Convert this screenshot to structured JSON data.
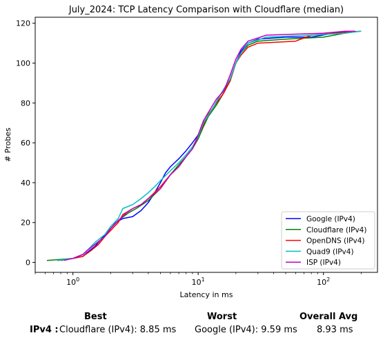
{
  "chart_data": {
    "type": "line",
    "title": "July_2024: TCP Latency Comparison with Cloudflare (median)",
    "xlabel": "Latency in ms",
    "ylabel": "# Probes",
    "xscale": "log",
    "xlim": [
      0.5,
      270
    ],
    "ylim": [
      -5,
      123
    ],
    "xticks": [
      1,
      10,
      100
    ],
    "xtick_labels": [
      "10^0",
      "10^1",
      "10^2"
    ],
    "yticks": [
      0,
      20,
      40,
      60,
      80,
      100,
      120
    ],
    "grid": false,
    "legend_position": "lower-right",
    "series": [
      {
        "name": "Google (IPv4)",
        "color": "#0000ff",
        "x": [
          0.75,
          0.9,
          1.0,
          1.2,
          1.3,
          1.5,
          1.7,
          2.0,
          2.2,
          2.5,
          3.0,
          3.5,
          4.0,
          4.5,
          5.0,
          5.5,
          6.0,
          7.0,
          8.0,
          9.0,
          10.0,
          11.0,
          13.0,
          15.0,
          18.0,
          20.0,
          22.0,
          25.0,
          30.0,
          50.0,
          80.0,
          120.0,
          180.0
        ],
        "y": [
          1,
          1.5,
          2,
          3,
          5,
          8,
          12,
          17,
          20,
          22,
          23,
          26,
          30,
          35,
          40,
          45,
          48,
          52,
          56,
          60,
          64,
          70,
          77,
          84,
          92,
          100,
          106,
          110,
          112,
          113,
          113,
          115,
          116
        ]
      },
      {
        "name": "Cloudflare (IPv4)",
        "color": "#008000",
        "x": [
          0.62,
          0.8,
          1.0,
          1.2,
          1.3,
          1.5,
          1.8,
          2.0,
          2.3,
          2.8,
          3.2,
          4.0,
          5.0,
          6.0,
          7.0,
          8.0,
          9.0,
          10.0,
          11.0,
          12.0,
          14.0,
          16.0,
          18.0,
          20.0,
          22.0,
          25.0,
          30.0,
          50.0,
          100.0,
          180.0
        ],
        "y": [
          1,
          1.5,
          2,
          4,
          6,
          9,
          13,
          17,
          21,
          25,
          27,
          31,
          37,
          44,
          49,
          53,
          57,
          62,
          68,
          73,
          79,
          85,
          92,
          100,
          105,
          109,
          111,
          112,
          113,
          116
        ]
      },
      {
        "name": "OpenDNS (IPv4)",
        "color": "#ff0000",
        "x": [
          0.8,
          1.0,
          1.2,
          1.4,
          1.6,
          1.8,
          2.0,
          2.3,
          2.5,
          3.0,
          3.5,
          4.0,
          5.0,
          6.0,
          7.0,
          8.0,
          9.0,
          10.0,
          11.0,
          12.0,
          14.0,
          16.0,
          18.0,
          20.0,
          22.0,
          25.0,
          30.0,
          60.0,
          80.0,
          200.0
        ],
        "y": [
          1,
          2,
          3,
          6,
          9,
          13,
          16,
          20,
          24,
          27,
          29,
          32,
          38,
          44,
          48,
          53,
          57,
          63,
          69,
          74,
          80,
          85,
          91,
          100,
          104,
          108,
          110,
          111,
          114,
          116
        ]
      },
      {
        "name": "Quad9 (IPv4)",
        "color": "#00bfbf",
        "x": [
          0.75,
          1.0,
          1.2,
          1.3,
          1.5,
          1.8,
          2.0,
          2.3,
          2.5,
          3.0,
          3.5,
          4.0,
          4.5,
          5.0,
          6.0,
          7.0,
          8.0,
          9.0,
          10.0,
          11.0,
          13.0,
          15.0,
          18.0,
          20.0,
          22.0,
          25.0,
          35.0,
          80.0,
          150.0,
          200.0
        ],
        "y": [
          1,
          2,
          4,
          6,
          10,
          14,
          18,
          22,
          27,
          29,
          32,
          35,
          38,
          41,
          46,
          50,
          54,
          58,
          63,
          70,
          77,
          84,
          92,
          100,
          105,
          110,
          113,
          114,
          115,
          116
        ]
      },
      {
        "name": "ISP (IPv4)",
        "color": "#bf00bf",
        "x": [
          0.85,
          1.0,
          1.2,
          1.3,
          1.5,
          1.8,
          2.0,
          2.3,
          2.7,
          3.0,
          3.5,
          4.0,
          5.0,
          6.0,
          7.0,
          8.0,
          9.0,
          10.0,
          11.0,
          12.0,
          14.0,
          16.0,
          18.0,
          20.0,
          22.0,
          25.0,
          35.0,
          100.0,
          150.0,
          180.0
        ],
        "y": [
          1,
          2,
          4,
          6,
          9,
          13,
          17,
          21,
          25,
          27,
          29,
          32,
          37,
          44,
          48,
          53,
          57,
          64,
          71,
          75,
          82,
          86,
          94,
          102,
          107,
          111,
          114,
          115,
          116,
          116
        ]
      }
    ]
  },
  "summary": {
    "best_heading": "Best",
    "worst_heading": "Worst",
    "avg_heading": "Overall Avg",
    "row_label": "IPv4 :",
    "best_value": "Cloudflare (IPv4): 8.85 ms",
    "worst_value": "Google (IPv4): 9.59 ms",
    "avg_value": "8.93 ms"
  }
}
